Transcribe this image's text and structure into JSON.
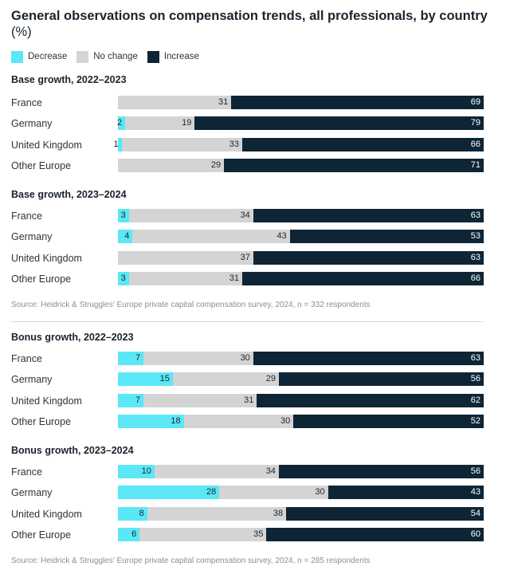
{
  "title": {
    "main": "General observations on compensation trends, all professionals, by country",
    "unit": "(%)"
  },
  "colors": {
    "decrease": "#5be7f5",
    "no_change": "#d4d4d4",
    "increase": "#0e2536"
  },
  "legend": [
    "Decrease",
    "No change",
    "Increase"
  ],
  "chart_data": [
    {
      "type": "bar",
      "title": "Base growth, 2022–2023",
      "categories": [
        "France",
        "Germany",
        "United Kingdom",
        "Other Europe"
      ],
      "series": [
        {
          "name": "Decrease",
          "values": [
            0,
            2,
            1,
            0
          ]
        },
        {
          "name": "No change",
          "values": [
            31,
            19,
            33,
            29
          ]
        },
        {
          "name": "Increase",
          "values": [
            69,
            79,
            66,
            71
          ]
        }
      ]
    },
    {
      "type": "bar",
      "title": "Base growth, 2023–2024",
      "categories": [
        "France",
        "Germany",
        "United Kingdom",
        "Other Europe"
      ],
      "series": [
        {
          "name": "Decrease",
          "values": [
            3,
            4,
            0,
            3
          ]
        },
        {
          "name": "No change",
          "values": [
            34,
            43,
            37,
            31
          ]
        },
        {
          "name": "Increase",
          "values": [
            63,
            53,
            63,
            66
          ]
        }
      ]
    },
    {
      "type": "bar",
      "title": "Bonus growth, 2022–2023",
      "categories": [
        "France",
        "Germany",
        "United Kingdom",
        "Other Europe"
      ],
      "series": [
        {
          "name": "Decrease",
          "values": [
            7,
            15,
            7,
            18
          ]
        },
        {
          "name": "No change",
          "values": [
            30,
            29,
            31,
            30
          ]
        },
        {
          "name": "Increase",
          "values": [
            63,
            56,
            62,
            52
          ]
        }
      ]
    },
    {
      "type": "bar",
      "title": "Bonus growth, 2023–2024",
      "categories": [
        "France",
        "Germany",
        "United Kingdom",
        "Other Europe"
      ],
      "series": [
        {
          "name": "Decrease",
          "values": [
            10,
            28,
            8,
            6
          ]
        },
        {
          "name": "No change",
          "values": [
            34,
            30,
            38,
            35
          ]
        },
        {
          "name": "Increase",
          "values": [
            56,
            43,
            54,
            60
          ]
        }
      ]
    }
  ],
  "sources": [
    "Source: Heidrick & Struggles' Europe private capital compensation survey, 2024, n = 332 respondents",
    "Source: Heidrick & Struggles' Europe private capital compensation survey, 2024, n = 285 respondents"
  ]
}
